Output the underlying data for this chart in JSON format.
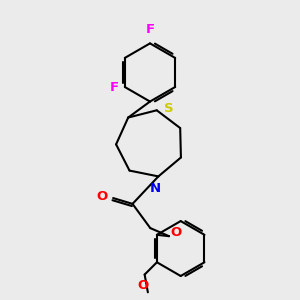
{
  "background_color": "#ebebeb",
  "line_color": "#000000",
  "atom_colors": {
    "F": "#ff00ff",
    "S": "#cccc00",
    "N": "#0000ee",
    "O": "#ff0000"
  },
  "line_width": 1.5,
  "font_size": 9.5,
  "figsize": [
    3.0,
    3.0
  ],
  "dpi": 100
}
